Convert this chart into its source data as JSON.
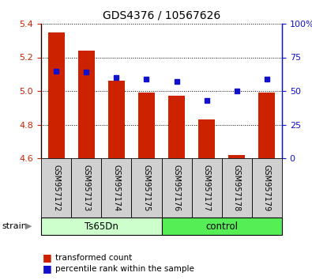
{
  "title": "GDS4376 / 10567626",
  "samples": [
    "GSM957172",
    "GSM957173",
    "GSM957174",
    "GSM957175",
    "GSM957176",
    "GSM957177",
    "GSM957178",
    "GSM957179"
  ],
  "transformed_counts": [
    5.35,
    5.24,
    5.06,
    4.99,
    4.97,
    4.83,
    4.62,
    4.99
  ],
  "percentile_ranks": [
    65,
    64,
    60,
    59,
    57,
    43,
    50,
    59
  ],
  "bar_bottom": 4.6,
  "ylim_left": [
    4.6,
    5.4
  ],
  "ylim_right": [
    0,
    100
  ],
  "yticks_left": [
    4.6,
    4.8,
    5.0,
    5.2,
    5.4
  ],
  "yticks_right": [
    0,
    25,
    50,
    75,
    100
  ],
  "ytick_labels_right": [
    "0",
    "25",
    "50",
    "75",
    "100%"
  ],
  "bar_color": "#cc2200",
  "dot_color": "#1111cc",
  "group1_label": "Ts65Dn",
  "group2_label": "control",
  "group1_indices": [
    0,
    1,
    2,
    3
  ],
  "group2_indices": [
    4,
    5,
    6,
    7
  ],
  "group1_color": "#ccffcc",
  "group2_color": "#55ee55",
  "strain_label": "strain",
  "legend_bar_label": "transformed count",
  "legend_dot_label": "percentile rank within the sample",
  "tick_color_left": "#cc2200",
  "tick_color_right": "#1111cc"
}
